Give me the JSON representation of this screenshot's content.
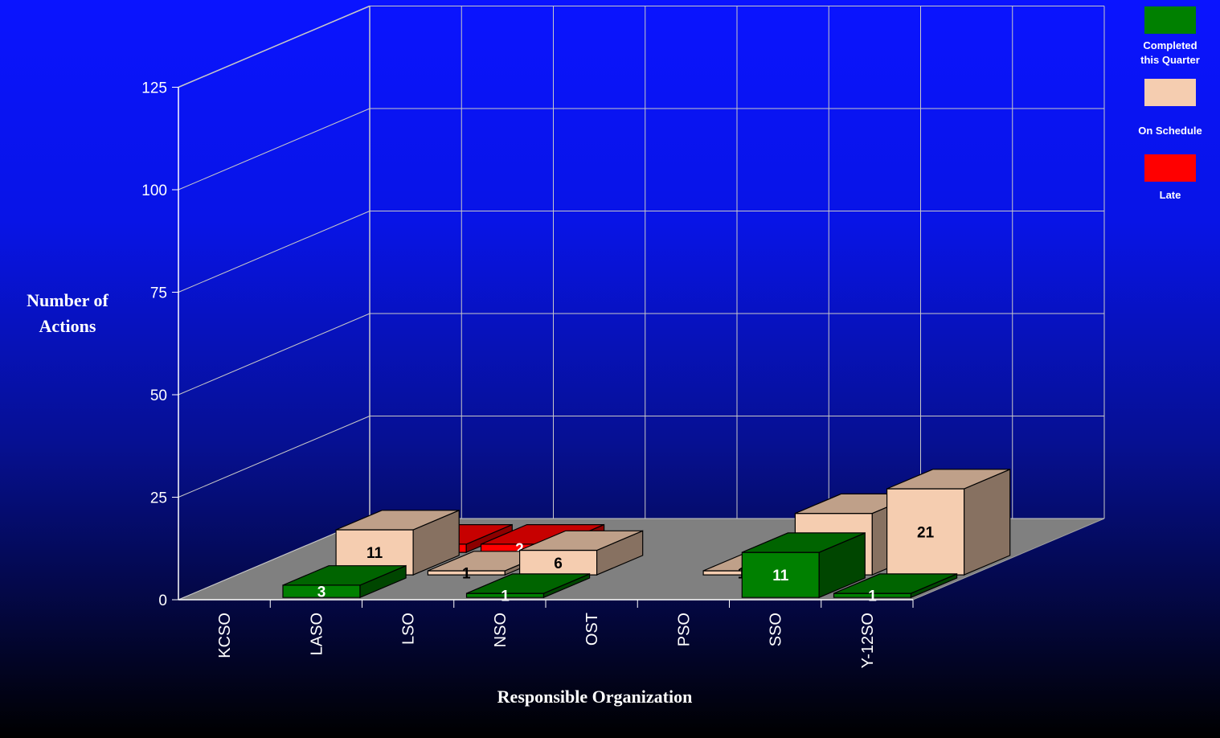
{
  "chart_data": {
    "type": "bar",
    "subtype": "3d-stacked",
    "xlabel": "Responsible Organization",
    "ylabel": "Number of Actions",
    "ylim": [
      0,
      125
    ],
    "yticks": [
      "0",
      "25",
      "50",
      "75",
      "100",
      "125"
    ],
    "categories": [
      "KCSO",
      "LASO",
      "LSO",
      "NSO",
      "OST",
      "PSO",
      "SSO",
      "Y-12SO"
    ],
    "grid": true,
    "legend_position": "top-right",
    "series": [
      {
        "name": "Completed\nthis Quarter",
        "color": "#008000",
        "values": [
          0,
          3,
          0,
          1,
          0,
          0,
          11,
          1
        ]
      },
      {
        "name": "On Schedule",
        "color": "#f5cdb0",
        "values": [
          0,
          11,
          1,
          6,
          0,
          1,
          15,
          21
        ]
      },
      {
        "name": "Late",
        "color": "#ff0000",
        "values": [
          0,
          2,
          2,
          0,
          0,
          0,
          6,
          0
        ]
      }
    ]
  }
}
